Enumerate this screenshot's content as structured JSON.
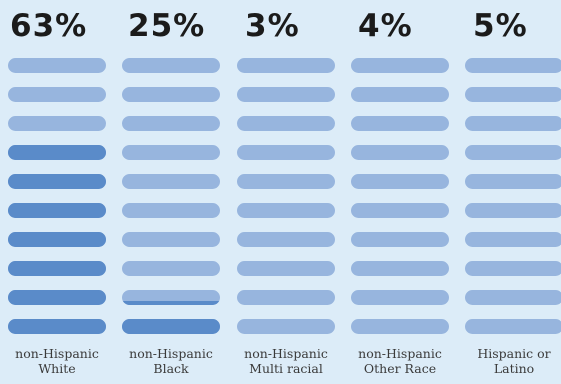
{
  "chart_data": {
    "type": "bar",
    "subtype": "pictogram-stack",
    "units_per_column": 10,
    "categories": [
      "non-Hispanic White",
      "non-Hispanic Black",
      "non-Hispanic Multi racial",
      "non-Hispanic Other Race",
      "Hispanic or Latino"
    ],
    "category_lines": [
      [
        "non-Hispanic",
        "White"
      ],
      [
        "non-Hispanic",
        "Black"
      ],
      [
        "non-Hispanic",
        "Multi racial"
      ],
      [
        "non-Hispanic",
        "Other Race"
      ],
      [
        "Hispanic or",
        "Latino"
      ]
    ],
    "values": [
      63,
      25,
      3,
      4,
      5
    ],
    "value_labels": [
      "63%",
      "25%",
      "3%",
      "4%",
      "5%"
    ],
    "fill_levels": [
      7,
      1.3,
      0,
      0,
      0
    ],
    "colors": {
      "filled": "#5a8bc9",
      "empty": "#97b5de",
      "background": "#dcecf8",
      "text": "#1b1b1b"
    }
  }
}
